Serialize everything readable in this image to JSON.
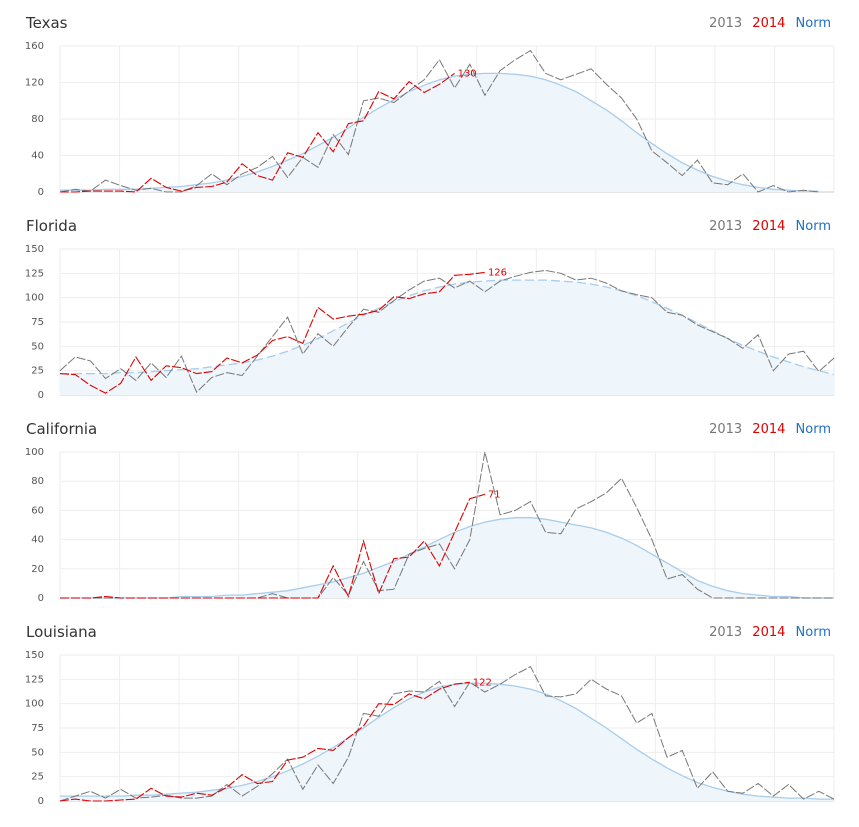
{
  "colors": {
    "y2013": "#777777",
    "y2014": "#e00000",
    "norm_line": "#a8cdec",
    "norm_fill": "#eef5fb",
    "grid": "#eeeeee",
    "axis": "#cccccc"
  },
  "chart_data": [
    {
      "type": "line",
      "title": "Texas",
      "legend": [
        "2013",
        "2014",
        "Norm"
      ],
      "legend_position": "top-right",
      "ylim": [
        0,
        160
      ],
      "yticks": [
        0,
        40,
        80,
        120,
        160
      ],
      "grid": true,
      "peak_label": "130",
      "series": [
        {
          "name": "2013",
          "values": [
            0,
            3,
            1,
            13,
            7,
            2,
            4,
            0,
            0,
            7,
            20,
            8,
            20,
            27,
            39,
            16,
            38,
            27,
            63,
            41,
            100,
            103,
            98,
            111,
            123,
            145,
            114,
            140,
            106,
            133,
            145,
            155,
            130,
            123,
            129,
            135,
            118,
            103,
            80,
            45,
            32,
            18,
            35,
            10,
            8,
            20,
            0,
            7,
            0,
            2,
            0
          ]
        },
        {
          "name": "2014",
          "values": [
            0,
            0,
            1,
            1,
            1,
            0,
            15,
            5,
            1,
            5,
            6,
            11,
            31,
            18,
            13,
            43,
            38,
            65,
            44,
            75,
            78,
            110,
            102,
            121,
            109,
            118,
            130
          ]
        },
        {
          "name": "Norm",
          "values": [
            2,
            2,
            2,
            3,
            3,
            3,
            4,
            5,
            6,
            8,
            10,
            13,
            17,
            22,
            28,
            35,
            42,
            51,
            60,
            70,
            82,
            92,
            101,
            110,
            117,
            123,
            127,
            129,
            130,
            130,
            129,
            127,
            123,
            117,
            110,
            100,
            90,
            78,
            65,
            53,
            42,
            32,
            24,
            17,
            12,
            8,
            5,
            3,
            2,
            1,
            1
          ]
        }
      ]
    },
    {
      "type": "line",
      "title": "Florida",
      "legend": [
        "2013",
        "2014",
        "Norm"
      ],
      "legend_position": "top-right",
      "ylim": [
        0,
        150
      ],
      "yticks": [
        0,
        25,
        50,
        75,
        100,
        125,
        150
      ],
      "grid": true,
      "peak_label": "126",
      "series": [
        {
          "name": "2013",
          "values": [
            25,
            39,
            35,
            17,
            27,
            15,
            33,
            18,
            40,
            3,
            18,
            23,
            20,
            40,
            60,
            80,
            42,
            63,
            50,
            70,
            88,
            85,
            97,
            108,
            117,
            120,
            110,
            117,
            106,
            117,
            122,
            126,
            128,
            125,
            118,
            120,
            115,
            107,
            103,
            100,
            85,
            82,
            72,
            65,
            58,
            48,
            62,
            25,
            42,
            45,
            24,
            38
          ]
        },
        {
          "name": "2014",
          "values": [
            22,
            21,
            10,
            2,
            12,
            39,
            15,
            30,
            28,
            22,
            24,
            38,
            33,
            41,
            56,
            60,
            53,
            90,
            78,
            81,
            83,
            87,
            101,
            99,
            104,
            106,
            123,
            124,
            126
          ]
        },
        {
          "name": "Norm",
          "values": [
            22,
            22,
            22,
            22,
            23,
            23,
            24,
            25,
            26,
            27,
            29,
            31,
            33,
            36,
            40,
            45,
            51,
            58,
            66,
            74,
            82,
            89,
            96,
            102,
            107,
            111,
            114,
            116,
            117,
            118,
            118,
            118,
            118,
            117,
            116,
            114,
            111,
            107,
            102,
            96,
            89,
            82,
            74,
            66,
            58,
            51,
            45,
            39,
            34,
            29,
            25,
            21
          ]
        }
      ]
    },
    {
      "type": "line",
      "title": "California",
      "legend": [
        "2013",
        "2014",
        "Norm"
      ],
      "legend_position": "top-right",
      "ylim": [
        0,
        100
      ],
      "yticks": [
        0,
        20,
        40,
        60,
        80,
        100
      ],
      "grid": true,
      "peak_label": "71",
      "series": [
        {
          "name": "2013",
          "values": [
            0,
            0,
            0,
            0,
            0,
            0,
            0,
            0,
            0,
            0,
            0,
            0,
            0,
            0,
            3,
            0,
            0,
            0,
            14,
            2,
            25,
            5,
            6,
            30,
            34,
            37,
            20,
            40,
            100,
            57,
            60,
            66,
            45,
            44,
            61,
            66,
            72,
            82,
            62,
            40,
            13,
            16,
            6,
            0,
            0,
            0,
            0,
            0,
            0,
            0,
            0,
            0
          ]
        },
        {
          "name": "2014",
          "values": [
            0,
            0,
            0,
            1,
            0,
            0,
            0,
            0,
            0,
            0,
            0,
            0,
            0,
            0,
            0,
            0,
            0,
            0,
            22,
            1,
            39,
            3,
            27,
            28,
            39,
            22,
            45,
            68,
            71
          ]
        },
        {
          "name": "Norm",
          "values": [
            0,
            0,
            0,
            0,
            0,
            0,
            0,
            0,
            1,
            1,
            1,
            2,
            2,
            3,
            4,
            5,
            7,
            9,
            11,
            14,
            17,
            21,
            25,
            30,
            35,
            40,
            45,
            49,
            52,
            54,
            55,
            55,
            54,
            52,
            50,
            48,
            45,
            41,
            36,
            30,
            24,
            18,
            12,
            8,
            5,
            3,
            2,
            1,
            1,
            0,
            0,
            0
          ]
        }
      ]
    },
    {
      "type": "line",
      "title": "Louisiana",
      "legend": [
        "2013",
        "2014",
        "Norm"
      ],
      "legend_position": "top-right",
      "ylim": [
        0,
        150
      ],
      "yticks": [
        0,
        25,
        50,
        75,
        100,
        125,
        150
      ],
      "grid": true,
      "peak_label": "122",
      "series": [
        {
          "name": "2013",
          "values": [
            0,
            5,
            10,
            3,
            12,
            3,
            4,
            6,
            3,
            3,
            5,
            17,
            5,
            15,
            28,
            43,
            12,
            37,
            18,
            45,
            90,
            87,
            110,
            113,
            112,
            123,
            97,
            122,
            112,
            120,
            130,
            138,
            108,
            107,
            110,
            125,
            115,
            108,
            80,
            90,
            45,
            52,
            13,
            30,
            10,
            8,
            18,
            5,
            17,
            2,
            10,
            2
          ]
        },
        {
          "name": "2014",
          "values": [
            0,
            2,
            0,
            0,
            1,
            2,
            13,
            5,
            4,
            8,
            6,
            14,
            27,
            18,
            20,
            42,
            45,
            54,
            52,
            65,
            77,
            100,
            99,
            110,
            105,
            115,
            120,
            122
          ]
        },
        {
          "name": "Norm",
          "values": [
            5,
            5,
            5,
            5,
            5,
            6,
            6,
            7,
            8,
            9,
            11,
            13,
            16,
            20,
            25,
            31,
            38,
            46,
            55,
            65,
            75,
            86,
            96,
            105,
            112,
            117,
            120,
            121,
            121,
            120,
            118,
            115,
            110,
            103,
            95,
            85,
            75,
            64,
            53,
            43,
            34,
            26,
            19,
            14,
            10,
            7,
            5,
            4,
            3,
            3,
            2,
            2
          ]
        }
      ]
    }
  ]
}
